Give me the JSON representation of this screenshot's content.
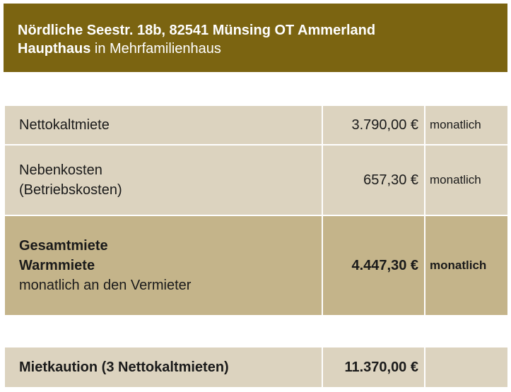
{
  "header": {
    "address": "Nördliche Seestr. 18b, 82541 Münsing OT Ammerland",
    "building": "Haupthaus",
    "building_suffix": " in Mehrfamilienhaus"
  },
  "rows": [
    {
      "label_lines": [
        "Nettokaltmiete"
      ],
      "amount": "3.790,00 €",
      "period": "monatlich"
    },
    {
      "label_lines": [
        "Nebenkosten",
        "(Betriebskosten)"
      ],
      "amount": "657,30 €",
      "period": "monatlich"
    },
    {
      "label_bold_lines": [
        "Gesamtmiete",
        "Warmmiete"
      ],
      "label_lines": [
        "monatlich an den Vermieter"
      ],
      "amount": "4.447,30 €",
      "period": "monatlich"
    }
  ],
  "deposit": {
    "label": "Mietkaution (3 Nettokaltmieten)",
    "amount": "11.370,00 €",
    "period": ""
  },
  "colors": {
    "header_bg": "#7b6411",
    "row_light": "#dcd3bf",
    "row_dark": "#c4b48a"
  }
}
